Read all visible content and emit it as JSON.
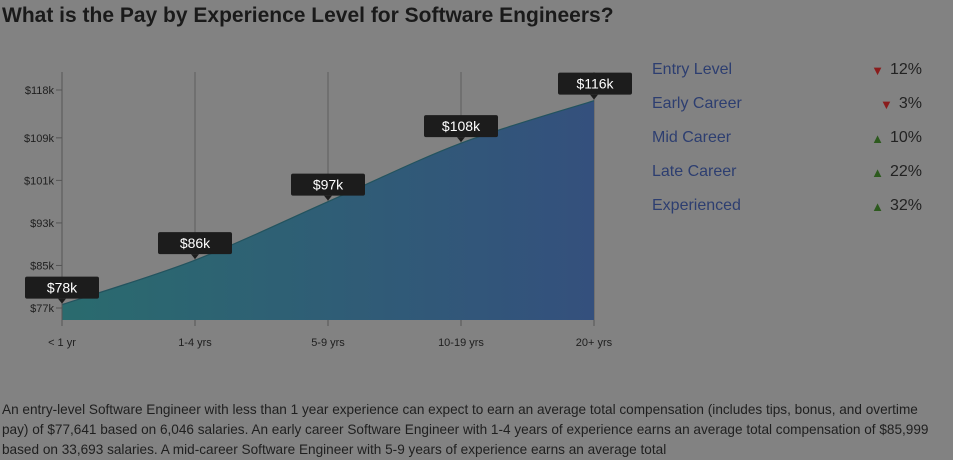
{
  "title": "What is the Pay by Experience Level for Software Engineers?",
  "chart_data": {
    "type": "area",
    "categories": [
      "< 1 yr",
      "1-4 yrs",
      "5-9 yrs",
      "10-19 yrs",
      "20+ yrs"
    ],
    "values": [
      77641,
      85999,
      97000,
      108000,
      116000
    ],
    "data_labels": [
      "$78k",
      "$86k",
      "$97k",
      "$108k",
      "$116k"
    ],
    "y_ticks": [
      {
        "value": 77000,
        "label": "$77k"
      },
      {
        "value": 85000,
        "label": "$85k"
      },
      {
        "value": 93000,
        "label": "$93k"
      },
      {
        "value": 101000,
        "label": "$101k"
      },
      {
        "value": 109000,
        "label": "$109k"
      },
      {
        "value": 118000,
        "label": "$118k"
      }
    ],
    "ylim": [
      75000,
      120000
    ],
    "grid": "vertical",
    "colors": {
      "start": "#2a6b6e",
      "end": "#34507d",
      "label_bg": "#1c1c1c"
    }
  },
  "legend": [
    {
      "label": "Entry Level",
      "direction": "down",
      "change": "12%"
    },
    {
      "label": "Early Career",
      "direction": "down",
      "change": "3%"
    },
    {
      "label": "Mid Career",
      "direction": "up",
      "change": "10%"
    },
    {
      "label": "Late Career",
      "direction": "up",
      "change": "22%"
    },
    {
      "label": "Experienced",
      "direction": "up",
      "change": "32%"
    }
  ],
  "description": "An entry-level Software Engineer with less than 1 year experience can expect to earn an average total compensation (includes tips, bonus, and overtime pay) of $77,641 based on 6,046 salaries. An early career Software Engineer with 1-4 years of experience earns an average total compensation of $85,999 based on 33,693 salaries. A mid-career Software Engineer with 5-9 years of experience earns an average total"
}
